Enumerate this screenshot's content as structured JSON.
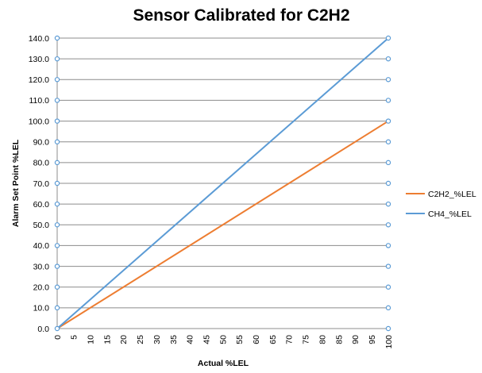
{
  "chart_data": {
    "type": "line",
    "title": "Sensor Calibrated for C2H2",
    "xlabel": "Actual %LEL",
    "ylabel": "Alarm Set Point  %LEL",
    "xlim": [
      0,
      100
    ],
    "ylim": [
      0,
      140
    ],
    "x_ticks": [
      "0",
      "5",
      "10",
      "15",
      "20",
      "25",
      "30",
      "35",
      "40",
      "45",
      "50",
      "55",
      "60",
      "65",
      "70",
      "75",
      "80",
      "85",
      "90",
      "95",
      "100"
    ],
    "y_ticks": [
      "0.0",
      "10.0",
      "20.0",
      "30.0",
      "40.0",
      "50.0",
      "60.0",
      "70.0",
      "80.0",
      "90.0",
      "100.0",
      "110.0",
      "120.0",
      "130.0",
      "140.0"
    ],
    "grid": "horizontal",
    "legend": "right",
    "series": [
      {
        "name": "C2H2_%LEL",
        "color": "#ED7D31",
        "x": [
          0,
          100
        ],
        "y": [
          0,
          100
        ]
      },
      {
        "name": "CH4_%LEL",
        "color": "#5B9BD5",
        "x": [
          0,
          100
        ],
        "y": [
          0,
          140
        ]
      }
    ]
  }
}
